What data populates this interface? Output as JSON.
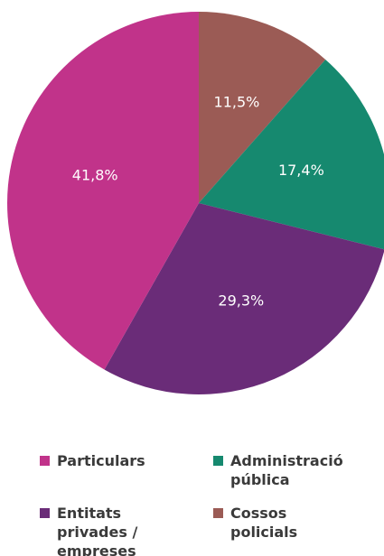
{
  "chart_data": {
    "type": "pie",
    "series": [
      {
        "name": "Cossos policials",
        "color": "#9b5b55",
        "value": 11.5,
        "value_label": "11,5%"
      },
      {
        "name": "Administració pública",
        "color": "#16896f",
        "value": 17.4,
        "value_label": "17,4%"
      },
      {
        "name": "Entitats privades / empreses",
        "color": "#6a2c78",
        "value": 29.3,
        "value_label": "29,3%"
      },
      {
        "name": "Particulars",
        "color": "#c1338a",
        "value": 41.8,
        "value_label": "41,8%"
      }
    ]
  }
}
